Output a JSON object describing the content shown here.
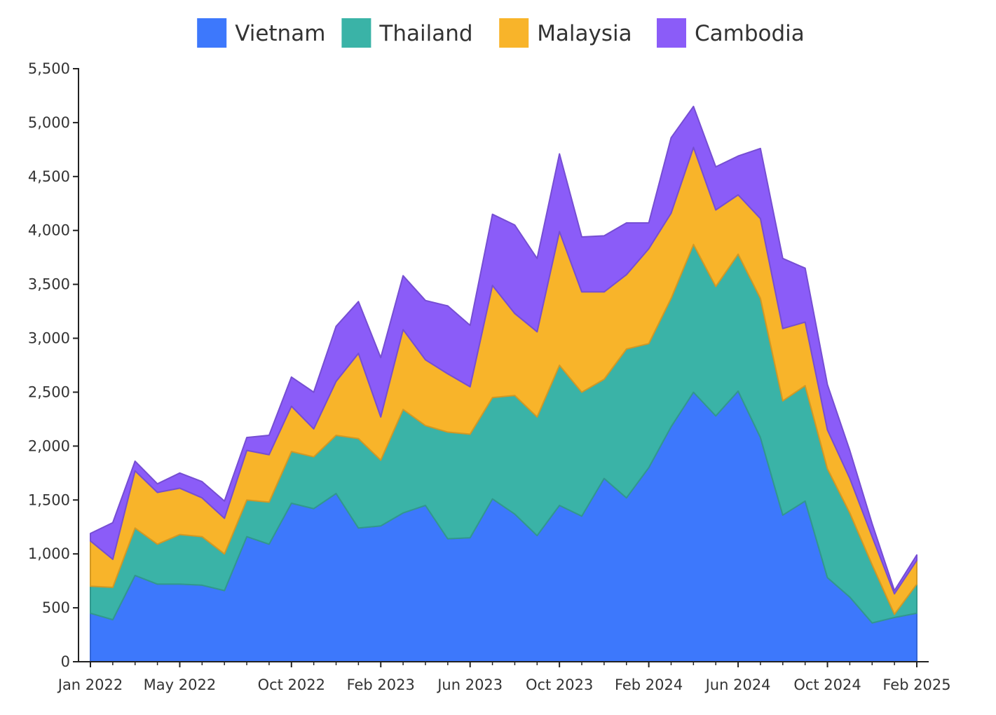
{
  "chart_data": {
    "type": "area",
    "stacked": true,
    "legend_position": "top-center",
    "grid": false,
    "title": "",
    "xlabel": "",
    "ylabel": "",
    "ylim": [
      0,
      5500
    ],
    "y_ticks": [
      "0",
      "500",
      "1,000",
      "1,500",
      "2,000",
      "2,500",
      "3,000",
      "3,500",
      "4,000",
      "4,500",
      "5,000",
      "5,500"
    ],
    "y_tick_values": [
      0,
      500,
      1000,
      1500,
      2000,
      2500,
      3000,
      3500,
      4000,
      4500,
      5000,
      5500
    ],
    "x_start": "2022-01",
    "x_end": "2025-02",
    "x_tick_labels": [
      "Jan 2022",
      "May 2022",
      "Oct 2022",
      "Feb 2023",
      "Jun 2023",
      "Oct 2023",
      "Feb 2024",
      "Jun 2024",
      "Oct 2024",
      "Feb 2025"
    ],
    "x_tick_months": [
      "2022-01",
      "2022-05",
      "2022-10",
      "2023-02",
      "2023-06",
      "2023-10",
      "2024-02",
      "2024-06",
      "2024-10",
      "2025-02"
    ],
    "x": [
      "2022-01",
      "2022-02",
      "2022-03",
      "2022-04",
      "2022-05",
      "2022-06",
      "2022-07",
      "2022-08",
      "2022-09",
      "2022-10",
      "2022-11",
      "2022-12",
      "2023-01",
      "2023-02",
      "2023-03",
      "2023-04",
      "2023-05",
      "2023-06",
      "2023-07",
      "2023-08",
      "2023-09",
      "2023-10",
      "2023-11",
      "2023-12",
      "2024-01",
      "2024-02",
      "2024-03",
      "2024-04",
      "2024-05",
      "2024-06",
      "2024-07",
      "2024-08",
      "2024-09",
      "2024-10",
      "2024-11",
      "2024-12",
      "2025-01",
      "2025-02"
    ],
    "series": [
      {
        "name": "Vietnam",
        "color": "#3d78fc",
        "values": [
          450,
          390,
          800,
          720,
          720,
          710,
          660,
          1160,
          1090,
          1470,
          1420,
          1560,
          1240,
          1260,
          1380,
          1450,
          1140,
          1150,
          1510,
          1370,
          1170,
          1450,
          1350,
          1700,
          1520,
          1800,
          2180,
          2500,
          2280,
          2510,
          2080,
          1360,
          1490,
          780,
          600,
          360,
          410,
          450
        ]
      },
      {
        "name": "Thailand",
        "color": "#3ab3a7",
        "values": [
          250,
          300,
          440,
          370,
          460,
          450,
          340,
          340,
          390,
          480,
          480,
          540,
          830,
          610,
          960,
          740,
          990,
          960,
          940,
          1100,
          1100,
          1300,
          1150,
          920,
          1380,
          1150,
          1190,
          1370,
          1200,
          1270,
          1290,
          1060,
          1070,
          1010,
          780,
          540,
          30,
          270
        ]
      },
      {
        "name": "Malaysia",
        "color": "#f8b42a",
        "values": [
          420,
          260,
          530,
          480,
          430,
          360,
          330,
          460,
          440,
          420,
          260,
          500,
          790,
          400,
          740,
          610,
          540,
          440,
          1040,
          760,
          790,
          1240,
          930,
          810,
          690,
          880,
          790,
          900,
          710,
          550,
          740,
          670,
          590,
          360,
          320,
          260,
          190,
          220
        ]
      },
      {
        "name": "Cambodia",
        "color": "#8b5cf8",
        "values": [
          70,
          340,
          90,
          80,
          140,
          150,
          160,
          120,
          180,
          270,
          340,
          510,
          480,
          550,
          500,
          550,
          630,
          570,
          660,
          820,
          680,
          720,
          510,
          520,
          480,
          240,
          700,
          380,
          400,
          360,
          650,
          650,
          500,
          420,
          260,
          120,
          30,
          50
        ]
      }
    ]
  }
}
